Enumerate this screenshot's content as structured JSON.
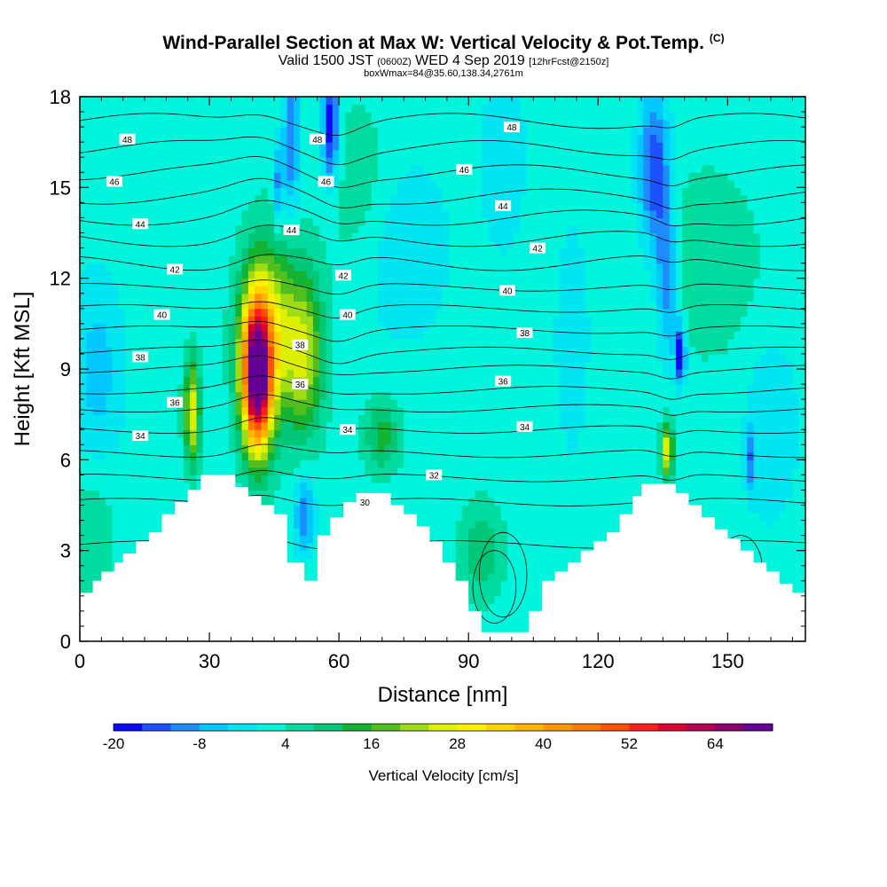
{
  "title": {
    "main": "Wind-Parallel Section at Max W: Vertical Velocity & Pot.Temp.",
    "main_mark": "(C)",
    "valid_prefix": "Valid 1500 JST",
    "valid_z": "(0600Z)",
    "valid_date": "WED 4 Sep 2019",
    "valid_fcst": "[12hrFcst@2150z]",
    "box_info": "boxWmax=84@35.60,138.34,2761m"
  },
  "chart_data": {
    "type": "heatmap",
    "xlabel": "Distance [nm]",
    "ylabel": "Height [Kft MSL]",
    "xlim": [
      0,
      168
    ],
    "ylim": [
      0,
      18
    ],
    "x_ticks": [
      0,
      30,
      60,
      90,
      120,
      150
    ],
    "y_ticks": [
      0,
      3,
      6,
      9,
      12,
      15,
      18
    ],
    "colorbar": {
      "label": "Vertical Velocity [cm/s]",
      "tick_values": [
        -20,
        -8,
        4,
        16,
        28,
        40,
        52,
        64
      ],
      "levels": [
        -20,
        -16,
        -12,
        -8,
        -4,
        0,
        4,
        8,
        12,
        16,
        20,
        24,
        28,
        32,
        36,
        40,
        44,
        48,
        52,
        56,
        60,
        64,
        68
      ],
      "colors": [
        "#0a0aff",
        "#1e50ff",
        "#1e8cff",
        "#00c8ff",
        "#00e6f0",
        "#00f5dc",
        "#00dca0",
        "#00c878",
        "#14b432",
        "#50be1e",
        "#a0dc14",
        "#dcf000",
        "#fff000",
        "#ffd200",
        "#ffb400",
        "#ff9600",
        "#ff7800",
        "#ff5000",
        "#ff1e1e",
        "#dc0032",
        "#b40050",
        "#8c0073",
        "#640096"
      ]
    },
    "background_w": 2,
    "terrain": [
      [
        0,
        1.6
      ],
      [
        3,
        1.6
      ],
      [
        3,
        2.0
      ],
      [
        5,
        2.0
      ],
      [
        5,
        2.3
      ],
      [
        8,
        2.3
      ],
      [
        8,
        2.6
      ],
      [
        10,
        2.6
      ],
      [
        10,
        2.9
      ],
      [
        13,
        2.9
      ],
      [
        13,
        3.3
      ],
      [
        16,
        3.3
      ],
      [
        16,
        3.6
      ],
      [
        19,
        3.6
      ],
      [
        19,
        4.2
      ],
      [
        22,
        4.2
      ],
      [
        22,
        4.6
      ],
      [
        25,
        4.6
      ],
      [
        25,
        5.0
      ],
      [
        28,
        5.0
      ],
      [
        28,
        5.5
      ],
      [
        36,
        5.5
      ],
      [
        36,
        5.1
      ],
      [
        39,
        5.1
      ],
      [
        39,
        4.8
      ],
      [
        42,
        4.8
      ],
      [
        42,
        4.5
      ],
      [
        45,
        4.5
      ],
      [
        45,
        4.2
      ],
      [
        48,
        4.2
      ],
      [
        48,
        2.6
      ],
      [
        52,
        2.6
      ],
      [
        52,
        2.0
      ],
      [
        55,
        2.0
      ],
      [
        55,
        3.5
      ],
      [
        58,
        3.5
      ],
      [
        58,
        4.1
      ],
      [
        61,
        4.1
      ],
      [
        61,
        4.6
      ],
      [
        64,
        4.6
      ],
      [
        64,
        4.9
      ],
      [
        72,
        4.9
      ],
      [
        72,
        4.5
      ],
      [
        75,
        4.5
      ],
      [
        75,
        4.2
      ],
      [
        78,
        4.2
      ],
      [
        78,
        3.8
      ],
      [
        81,
        3.8
      ],
      [
        81,
        3.3
      ],
      [
        84,
        3.3
      ],
      [
        84,
        2.6
      ],
      [
        87,
        2.6
      ],
      [
        87,
        2.0
      ],
      [
        90,
        2.0
      ],
      [
        90,
        1.0
      ],
      [
        93,
        1.0
      ],
      [
        93,
        0.3
      ],
      [
        104,
        0.3
      ],
      [
        104,
        1.0
      ],
      [
        107,
        1.0
      ],
      [
        107,
        2.0
      ],
      [
        110,
        2.0
      ],
      [
        110,
        2.3
      ],
      [
        113,
        2.3
      ],
      [
        113,
        2.6
      ],
      [
        116,
        2.6
      ],
      [
        116,
        3.0
      ],
      [
        119,
        3.0
      ],
      [
        119,
        3.3
      ],
      [
        122,
        3.3
      ],
      [
        122,
        3.6
      ],
      [
        125,
        3.6
      ],
      [
        125,
        4.2
      ],
      [
        128,
        4.2
      ],
      [
        128,
        4.8
      ],
      [
        130,
        4.8
      ],
      [
        130,
        5.2
      ],
      [
        138,
        5.2
      ],
      [
        138,
        4.9
      ],
      [
        141,
        4.9
      ],
      [
        141,
        4.5
      ],
      [
        144,
        4.5
      ],
      [
        144,
        4.1
      ],
      [
        147,
        4.1
      ],
      [
        147,
        3.7
      ],
      [
        150,
        3.7
      ],
      [
        150,
        3.4
      ],
      [
        153,
        3.4
      ],
      [
        153,
        3.0
      ],
      [
        156,
        3.0
      ],
      [
        156,
        2.6
      ],
      [
        159,
        2.6
      ],
      [
        159,
        2.3
      ],
      [
        162,
        2.3
      ],
      [
        162,
        1.9
      ],
      [
        165,
        1.9
      ],
      [
        165,
        1.6
      ],
      [
        168,
        1.6
      ]
    ],
    "updraft_cells": [
      {
        "x": 41,
        "y": 8.8,
        "sx": 3.4,
        "sy": 2.4,
        "w": 70
      },
      {
        "x": 44,
        "y": 10.3,
        "sx": 6.5,
        "sy": 3.0,
        "w": 22
      },
      {
        "x": 52,
        "y": 9.5,
        "sx": 4.5,
        "sy": 2.6,
        "w": 20
      },
      {
        "x": 26,
        "y": 7.6,
        "sx": 1.8,
        "sy": 1.7,
        "w": 26
      },
      {
        "x": 136,
        "y": 6.3,
        "sx": 1.4,
        "sy": 0.9,
        "w": 26
      },
      {
        "x": 70,
        "y": 6.8,
        "sx": 4,
        "sy": 1.2,
        "w": 12
      },
      {
        "x": 93,
        "y": 3.0,
        "sx": 5,
        "sy": 1.5,
        "w": 10
      },
      {
        "x": 145,
        "y": 12.5,
        "sx": 12,
        "sy": 3,
        "w": 6
      },
      {
        "x": 3,
        "y": 3.5,
        "sx": 5,
        "sy": 2,
        "w": 6
      },
      {
        "x": 65,
        "y": 15,
        "sx": 8,
        "sy": 3,
        "w": 5
      }
    ],
    "downdraft_cells": [
      {
        "x": 58,
        "y": 17.0,
        "sx": 2.0,
        "sy": 1.8,
        "w": -22
      },
      {
        "x": 49,
        "y": 16.5,
        "sx": 1.8,
        "sy": 2.5,
        "w": -14
      },
      {
        "x": 46,
        "y": 15.0,
        "sx": 1.2,
        "sy": 1.5,
        "w": -12
      },
      {
        "x": 133,
        "y": 15.5,
        "sx": 3.5,
        "sy": 2.6,
        "w": -18
      },
      {
        "x": 136,
        "y": 12.0,
        "sx": 2.5,
        "sy": 2.5,
        "w": -14
      },
      {
        "x": 139,
        "y": 9.5,
        "sx": 1.3,
        "sy": 1.0,
        "w": -22
      },
      {
        "x": 52,
        "y": 4.2,
        "sx": 2.2,
        "sy": 1.2,
        "w": -14
      },
      {
        "x": 155,
        "y": 6.0,
        "sx": 1.0,
        "sy": 1.0,
        "w": -12
      },
      {
        "x": 4,
        "y": 9.0,
        "sx": 6,
        "sy": 3,
        "w": -8
      },
      {
        "x": 75,
        "y": 13,
        "sx": 10,
        "sy": 3,
        "w": -6
      },
      {
        "x": 98,
        "y": 16,
        "sx": 5,
        "sy": 3,
        "w": -6
      },
      {
        "x": 114,
        "y": 10,
        "sx": 4,
        "sy": 4,
        "w": -5
      },
      {
        "x": 160,
        "y": 7,
        "sx": 6,
        "sy": 3,
        "w": -6
      }
    ],
    "theta_contours": {
      "levels": [
        30,
        31,
        32,
        33,
        34,
        35,
        36,
        37,
        38,
        39,
        40,
        41,
        42,
        43,
        44,
        45,
        46,
        47,
        48
      ],
      "base_height": [
        3.2,
        4.6,
        5.4,
        6.2,
        7.0,
        7.7,
        8.3,
        9.0,
        9.6,
        10.3,
        11.0,
        11.7,
        12.5,
        13.3,
        14.0,
        14.7,
        15.5,
        16.3,
        17.2
      ],
      "labels": [
        {
          "text": "48",
          "x": 11,
          "y": 16.6
        },
        {
          "text": "48",
          "x": 55,
          "y": 16.6
        },
        {
          "text": "48",
          "x": 100,
          "y": 17.0
        },
        {
          "text": "46",
          "x": 8,
          "y": 15.2
        },
        {
          "text": "46",
          "x": 57,
          "y": 15.2
        },
        {
          "text": "46",
          "x": 89,
          "y": 15.6
        },
        {
          "text": "44",
          "x": 14,
          "y": 13.8
        },
        {
          "text": "44",
          "x": 49,
          "y": 13.6
        },
        {
          "text": "44",
          "x": 98,
          "y": 14.4
        },
        {
          "text": "42",
          "x": 22,
          "y": 12.3
        },
        {
          "text": "42",
          "x": 61,
          "y": 12.1
        },
        {
          "text": "42",
          "x": 106,
          "y": 13.0
        },
        {
          "text": "40",
          "x": 19,
          "y": 10.8
        },
        {
          "text": "40",
          "x": 62,
          "y": 10.8
        },
        {
          "text": "40",
          "x": 99,
          "y": 11.6
        },
        {
          "text": "38",
          "x": 14,
          "y": 9.4
        },
        {
          "text": "38",
          "x": 51,
          "y": 9.8
        },
        {
          "text": "38",
          "x": 103,
          "y": 10.2
        },
        {
          "text": "36",
          "x": 22,
          "y": 7.9
        },
        {
          "text": "36",
          "x": 51,
          "y": 8.5
        },
        {
          "text": "36",
          "x": 98,
          "y": 8.6
        },
        {
          "text": "34",
          "x": 14,
          "y": 6.8
        },
        {
          "text": "34",
          "x": 62,
          "y": 7.0
        },
        {
          "text": "34",
          "x": 103,
          "y": 7.1
        },
        {
          "text": "32",
          "x": 82,
          "y": 5.5
        },
        {
          "text": "30",
          "x": 66,
          "y": 4.6
        }
      ]
    }
  }
}
